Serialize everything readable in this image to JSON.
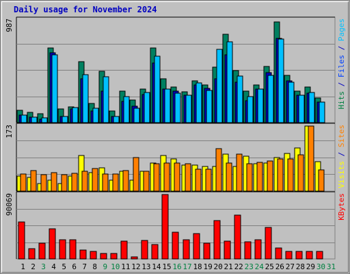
{
  "chart_data": {
    "type": "bar",
    "title": "Daily usage for November 2024",
    "categories": [
      "1",
      "2",
      "3",
      "4",
      "5",
      "6",
      "7",
      "8",
      "9",
      "10",
      "11",
      "12",
      "13",
      "14",
      "15",
      "16",
      "17",
      "18",
      "19",
      "20",
      "21",
      "22",
      "23",
      "24",
      "25",
      "26",
      "27",
      "28",
      "29",
      "30",
      "31"
    ],
    "weekend_days": [
      "3",
      "9",
      "10",
      "16",
      "17",
      "23",
      "24",
      "30",
      "31"
    ],
    "panels": [
      {
        "name": "hits-files-pages",
        "max_label": "987",
        "ylim": [
          0,
          987
        ],
        "right_label_parts": [
          {
            "text": "Pages",
            "color": "#00c0ff"
          },
          {
            "text": " / ",
            "color": "#0000c0"
          },
          {
            "text": "Files",
            "color": "#0040ff"
          },
          {
            "text": " / ",
            "color": "#0000c0"
          },
          {
            "text": "Hits",
            "color": "#008040"
          }
        ],
        "series": [
          {
            "name": "Hits",
            "color": "#008060",
            "values": [
              120,
              100,
              85,
              715,
              130,
              150,
              585,
              185,
              495,
              110,
              300,
              215,
              325,
              715,
              420,
              340,
              295,
              400,
              360,
              530,
              850,
              500,
              300,
              365,
              540,
              970,
              455,
              300,
              340,
              240,
              0
            ]
          },
          {
            "name": "Files",
            "color": "#0000c0",
            "values": [
              70,
              50,
              35,
              670,
              60,
              130,
              420,
              110,
              300,
              60,
              205,
              160,
              270,
              575,
              320,
              305,
              265,
              360,
              330,
              420,
              650,
              390,
              210,
              320,
              480,
              810,
              400,
              265,
              280,
              200,
              0
            ]
          },
          {
            "name": "Pages",
            "color": "#00c0ff",
            "values": [
              75,
              55,
              45,
              650,
              60,
              145,
              460,
              140,
              440,
              60,
              250,
              140,
              290,
              640,
              320,
              280,
              260,
              380,
              310,
              705,
              775,
              450,
              250,
              325,
              455,
              800,
              385,
              265,
              290,
              200,
              0
            ]
          }
        ]
      },
      {
        "name": "visits-sites",
        "max_label": "173",
        "ylim": [
          0,
          173
        ],
        "right_label_parts": [
          {
            "text": "Sites",
            "color": "#ff8000"
          },
          {
            "text": " / ",
            "color": "#0000c0"
          },
          {
            "text": "Visits",
            "color": "#ffff00"
          }
        ],
        "series": [
          {
            "name": "Visits",
            "color": "#ffff00",
            "values": [
              40,
              37,
              20,
              30,
              20,
              40,
              95,
              50,
              62,
              30,
              53,
              30,
              53,
              75,
              95,
              85,
              70,
              70,
              65,
              65,
              98,
              65,
              93,
              72,
              75,
              90,
              100,
              115,
              173,
              78,
              0
            ]
          },
          {
            "name": "Sites",
            "color": "#ff8000",
            "values": [
              45,
              55,
              43,
              50,
              43,
              47,
              53,
              60,
              45,
              45,
              54,
              90,
              52,
              73,
              75,
              75,
              73,
              58,
              58,
              112,
              75,
              98,
              72,
              77,
              80,
              85,
              85,
              97,
              173,
              57,
              0
            ]
          }
        ]
      },
      {
        "name": "kbytes",
        "max_label": "90069",
        "ylim": [
          0,
          90069
        ],
        "right_label_parts": [
          {
            "text": "KBytes",
            "color": "#ff0000"
          }
        ],
        "series": [
          {
            "name": "KBytes",
            "color": "#ff0000",
            "values": [
              52000,
              14000,
              22000,
              42000,
              27000,
              27000,
              12000,
              11000,
              8000,
              8000,
              25000,
              3000,
              26000,
              20000,
              90069,
              37000,
              27000,
              35000,
              22000,
              54000,
              25000,
              61000,
              24000,
              27000,
              44000,
              15000,
              11000,
              11000,
              11000,
              11000,
              0
            ]
          }
        ]
      }
    ]
  },
  "colors": {
    "background": "#c0c0c0",
    "plot_background": "#c0c0c0",
    "grid": "#808080",
    "weekday_label": "#000000",
    "weekend_label": "#008040",
    "title": "#0000c0"
  }
}
